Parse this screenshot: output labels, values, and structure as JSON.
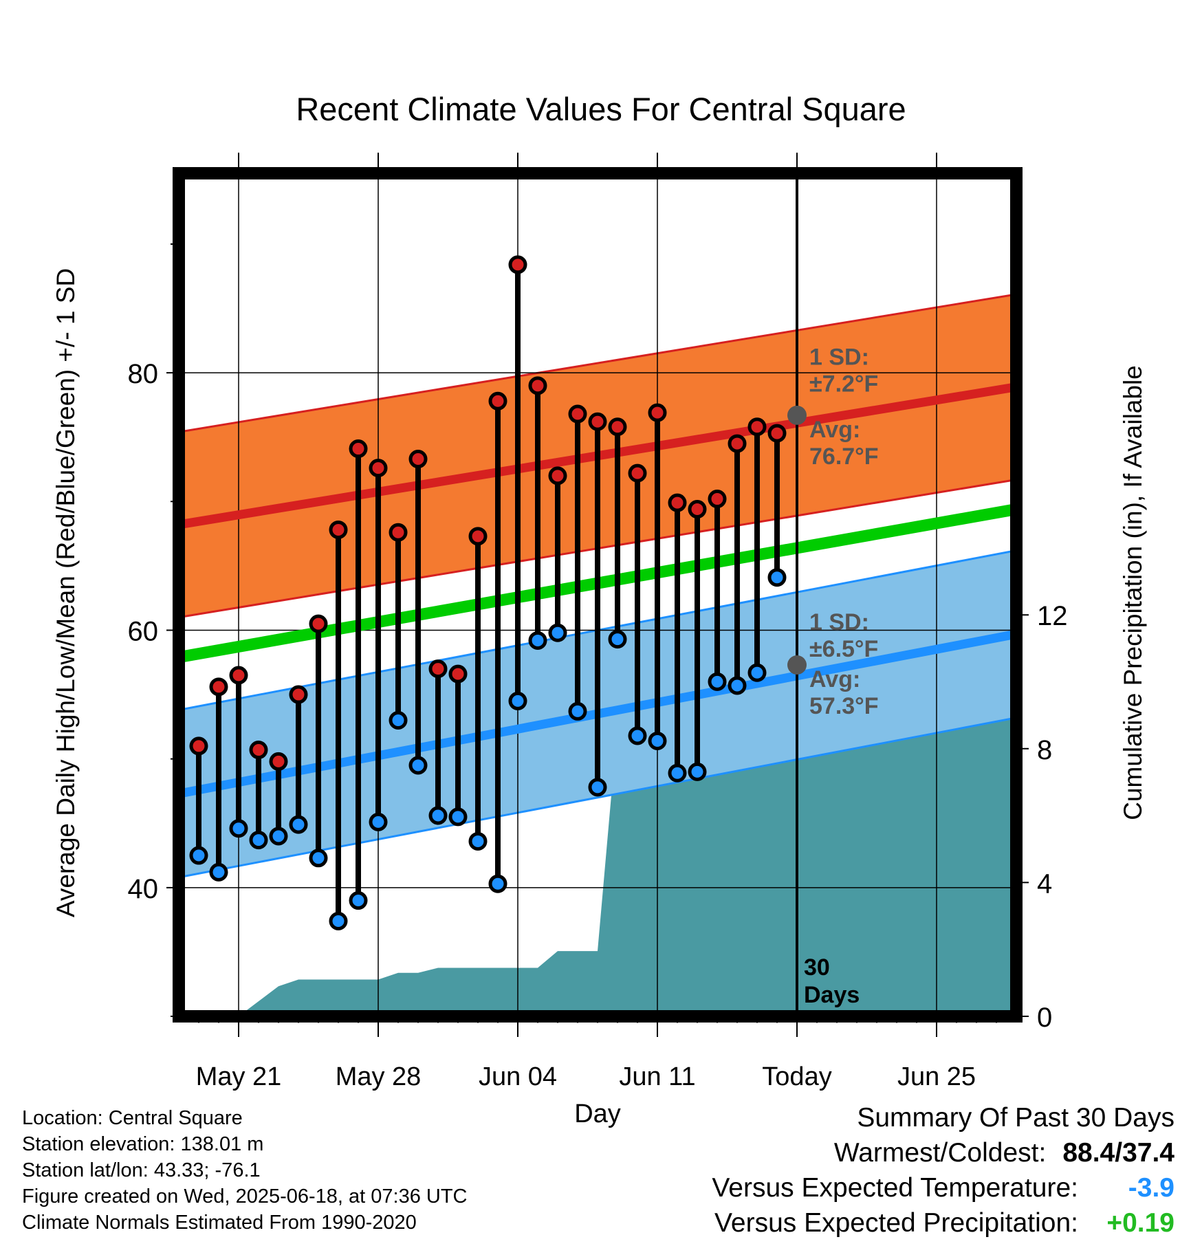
{
  "chart_data": {
    "type": "line",
    "title": "Recent Climate Values For Central Square",
    "xlabel": "Day",
    "ylabel": "Average Daily High/Low/Mean (Red/Blue/Green) +/- 1 SD",
    "y2label": "Cumulative Precipitation (in), If Available",
    "ylim": [
      30,
      95.5
    ],
    "y2lim": [
      0,
      25.2
    ],
    "yticks": [
      "40",
      "60",
      "80"
    ],
    "y2ticks": [
      "0",
      "4",
      "8",
      "12"
    ],
    "x_tick_labels": [
      "May 21",
      "May 28",
      "Jun 04",
      "Jun 11",
      "Today",
      "Jun 25"
    ],
    "x_tick_days": [
      "2025-05-21",
      "2025-05-28",
      "2025-06-04",
      "2025-06-11",
      "2025-06-18",
      "2025-06-25"
    ],
    "xlim": [
      "2025-05-18",
      "2025-06-29"
    ],
    "today": "2025-06-18",
    "daily": [
      {
        "day": "2025-05-19",
        "high": 51.0,
        "low": 42.5
      },
      {
        "day": "2025-05-20",
        "high": 55.6,
        "low": 41.2
      },
      {
        "day": "2025-05-21",
        "high": 56.5,
        "low": 44.6
      },
      {
        "day": "2025-05-22",
        "high": 50.7,
        "low": 43.7
      },
      {
        "day": "2025-05-23",
        "high": 49.8,
        "low": 44.0
      },
      {
        "day": "2025-05-24",
        "high": 55.0,
        "low": 44.9
      },
      {
        "day": "2025-05-25",
        "high": 60.5,
        "low": 42.3
      },
      {
        "day": "2025-05-26",
        "high": 67.8,
        "low": 37.4
      },
      {
        "day": "2025-05-27",
        "high": 74.1,
        "low": 39.0
      },
      {
        "day": "2025-05-28",
        "high": 72.6,
        "low": 45.1
      },
      {
        "day": "2025-05-29",
        "high": 67.6,
        "low": 53.0
      },
      {
        "day": "2025-05-30",
        "high": 73.3,
        "low": 49.5
      },
      {
        "day": "2025-05-31",
        "high": 57.0,
        "low": 45.6
      },
      {
        "day": "2025-06-01",
        "high": 56.6,
        "low": 45.5
      },
      {
        "day": "2025-06-02",
        "high": 67.3,
        "low": 43.6
      },
      {
        "day": "2025-06-03",
        "high": 77.8,
        "low": 40.3
      },
      {
        "day": "2025-06-04",
        "high": 88.4,
        "low": 54.5
      },
      {
        "day": "2025-06-05",
        "high": 79.0,
        "low": 59.2
      },
      {
        "day": "2025-06-06",
        "high": 72.0,
        "low": 59.8
      },
      {
        "day": "2025-06-07",
        "high": 76.8,
        "low": 53.7
      },
      {
        "day": "2025-06-08",
        "high": 76.2,
        "low": 47.8
      },
      {
        "day": "2025-06-09",
        "high": 75.8,
        "low": 59.3
      },
      {
        "day": "2025-06-10",
        "high": 72.2,
        "low": 51.8
      },
      {
        "day": "2025-06-11",
        "high": 76.9,
        "low": 51.4
      },
      {
        "day": "2025-06-12",
        "high": 69.9,
        "low": 48.9
      },
      {
        "day": "2025-06-13",
        "high": 69.4,
        "low": 49.0
      },
      {
        "day": "2025-06-14",
        "high": 70.2,
        "low": 56.0
      },
      {
        "day": "2025-06-15",
        "high": 74.5,
        "low": 55.7
      },
      {
        "day": "2025-06-16",
        "high": 75.8,
        "low": 56.7
      },
      {
        "day": "2025-06-17",
        "high": 75.3,
        "low": 64.1
      }
    ],
    "normal_high": {
      "start": 68.2,
      "end": 78.9,
      "sd": 7.2
    },
    "normal_low": {
      "start": 47.3,
      "end": 59.7,
      "sd": 6.5
    },
    "normal_mean": {
      "start": 57.9,
      "end": 69.4
    },
    "precip_cumulative": [
      {
        "day": "2025-05-18",
        "in": 0.0
      },
      {
        "day": "2025-05-21",
        "in": 0.0
      },
      {
        "day": "2025-05-22",
        "in": 0.45
      },
      {
        "day": "2025-05-23",
        "in": 0.9
      },
      {
        "day": "2025-05-24",
        "in": 1.1
      },
      {
        "day": "2025-05-28",
        "in": 1.1
      },
      {
        "day": "2025-05-29",
        "in": 1.3
      },
      {
        "day": "2025-05-30",
        "in": 1.3
      },
      {
        "day": "2025-05-31",
        "in": 1.45
      },
      {
        "day": "2025-06-05",
        "in": 1.45
      },
      {
        "day": "2025-06-06",
        "in": 1.95
      },
      {
        "day": "2025-06-07",
        "in": 1.95
      },
      {
        "day": "2025-06-08",
        "in": 1.95
      },
      {
        "day": "2025-06-09",
        "in": 8.7
      },
      {
        "day": "2025-06-10",
        "in": 9.2
      },
      {
        "day": "2025-06-17",
        "in": 9.25
      },
      {
        "day": "2025-06-29",
        "in": 9.25
      }
    ],
    "annotations": {
      "high_sd_label": "1 SD:",
      "high_sd_value": "±7.2°F",
      "high_avg_label": "Avg:",
      "high_avg_value": "76.7°F",
      "high_avg_marker": 76.7,
      "low_sd_label": "1 SD:",
      "low_sd_value": "±6.5°F",
      "low_avg_label": "Avg:",
      "low_avg_value": "57.3°F",
      "low_avg_marker": 57.3,
      "days_label_1": "30",
      "days_label_2": "Days"
    },
    "colors": {
      "high_band": "#f47a30",
      "high_line": "#d62020",
      "low_band": "#82c0e8",
      "low_line": "#1e90ff",
      "mean_line": "#00cc00",
      "precip": "#4a9aa2",
      "high_marker": "#d62020",
      "low_marker": "#1e90ff",
      "avg_marker": "#555555",
      "annotation_text": "#555555"
    },
    "grid": true
  },
  "metadata": {
    "location": "Location: Central Square",
    "elevation": "Station elevation: 138.01 m",
    "latlon": "Station lat/lon: 43.33; -76.1",
    "created": "Figure created on Wed, 2025-06-18, at 07:36 UTC",
    "normals": "Climate Normals Estimated From 1990-2020"
  },
  "summary": {
    "heading": "Summary Of Past 30 Days",
    "warm_cold_label": "Warmest/Coldest:",
    "warm_cold_value": "88.4/37.4",
    "temp_label": "Versus Expected Temperature:",
    "temp_value": "-3.9",
    "temp_color": "#1e90ff",
    "precip_label": "Versus Expected Precipitation:",
    "precip_value": "+0.19",
    "precip_color": "#22bb22"
  }
}
